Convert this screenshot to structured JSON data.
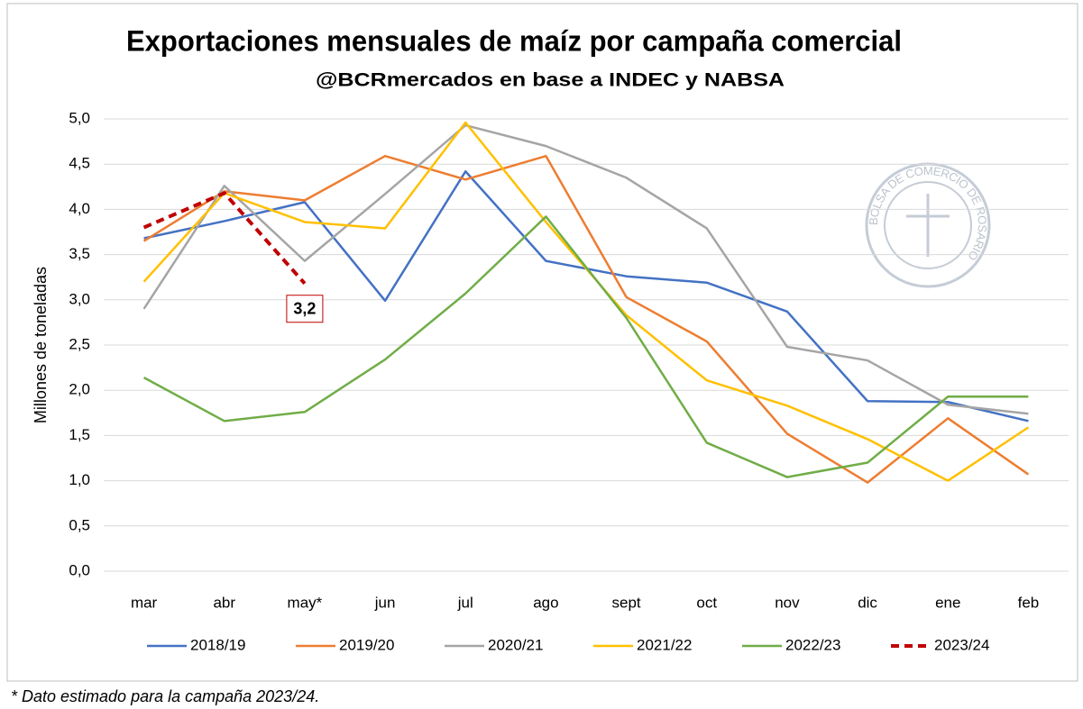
{
  "chart_data": {
    "type": "line",
    "title": "Exportaciones mensuales de maíz por campaña comercial",
    "subtitle": "@BCRmercados en base a INDEC y NABSA",
    "y_label": "Millones de toneladas",
    "footnote": "* Dato estimado para la campaña 2023/24.",
    "logo_text": "BOLSA DE COMERCIO DE ROSARIO",
    "categories": [
      "mar",
      "abr",
      "may*",
      "jun",
      "jul",
      "ago",
      "sept",
      "oct",
      "nov",
      "dic",
      "ene",
      "feb"
    ],
    "ylim": [
      0,
      5
    ],
    "yticks": [
      {
        "value": 0,
        "label": "0,0"
      },
      {
        "value": 0.5,
        "label": "0,5"
      },
      {
        "value": 1,
        "label": "1,0"
      },
      {
        "value": 1.5,
        "label": "1,5"
      },
      {
        "value": 2,
        "label": "2,0"
      },
      {
        "value": 2.5,
        "label": "2,5"
      },
      {
        "value": 3,
        "label": "3,0"
      },
      {
        "value": 3.5,
        "label": "3,5"
      },
      {
        "value": 4,
        "label": "4,0"
      },
      {
        "value": 4.5,
        "label": "4,5"
      },
      {
        "value": 5,
        "label": "5,0"
      }
    ],
    "grid": true,
    "legend": "bottom",
    "series": [
      {
        "name": "2018/19",
        "color": "#4472c4",
        "values": [
          3.68,
          3.87,
          4.08,
          2.99,
          4.42,
          3.43,
          3.26,
          3.19,
          2.87,
          1.88,
          1.87,
          1.66
        ]
      },
      {
        "name": "2019/20",
        "color": "#ed7d31",
        "values": [
          3.65,
          4.2,
          4.1,
          4.59,
          4.33,
          4.59,
          3.03,
          2.54,
          1.52,
          0.98,
          1.69,
          1.07
        ]
      },
      {
        "name": "2020/21",
        "color": "#a5a5a5",
        "values": [
          2.9,
          4.26,
          3.43,
          4.17,
          4.93,
          4.7,
          4.35,
          3.79,
          2.48,
          2.33,
          1.84,
          1.74
        ]
      },
      {
        "name": "2021/22",
        "color": "#ffc000",
        "values": [
          3.2,
          4.18,
          3.86,
          3.79,
          4.96,
          3.86,
          2.83,
          2.11,
          1.83,
          1.46,
          1.0,
          1.59
        ]
      },
      {
        "name": "2022/23",
        "color": "#70ad47",
        "values": [
          2.14,
          1.66,
          1.76,
          2.34,
          3.07,
          3.92,
          2.8,
          1.42,
          1.04,
          1.2,
          1.93,
          1.93
        ]
      },
      {
        "name": "2023/24",
        "color": "#c00000",
        "dashed": true,
        "values": [
          3.8,
          4.18,
          3.18,
          null,
          null,
          null,
          null,
          null,
          null,
          null,
          null,
          null
        ],
        "value_labels": [
          null,
          null,
          "3,2",
          null,
          null,
          null,
          null,
          null,
          null,
          null,
          null,
          null
        ]
      }
    ]
  }
}
